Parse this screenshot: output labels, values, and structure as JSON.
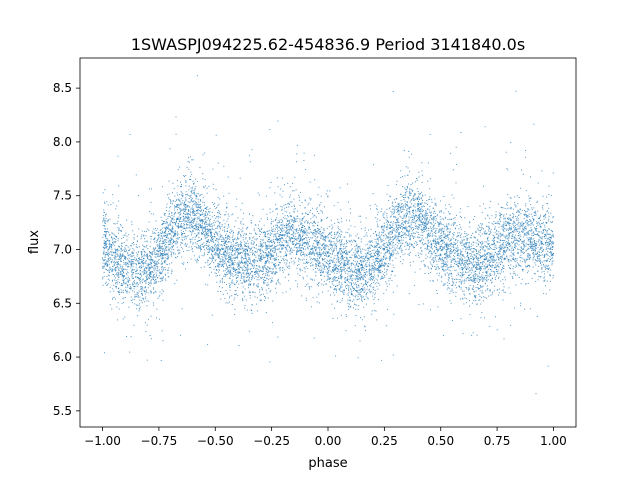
{
  "chart_data": {
    "type": "scatter",
    "title": "1SWASPJ094225.62-454836.9 Period 3141840.0s",
    "xlabel": "phase",
    "ylabel": "flux",
    "xlim": [
      -1.1,
      1.1
    ],
    "ylim": [
      5.35,
      8.78
    ],
    "xticks": [
      -1.0,
      -0.75,
      -0.5,
      -0.25,
      0.0,
      0.25,
      0.5,
      0.75,
      1.0
    ],
    "xtick_labels": [
      "−1.00",
      "−0.75",
      "−0.50",
      "−0.25",
      "0.00",
      "0.25",
      "0.50",
      "0.75",
      "1.00"
    ],
    "yticks": [
      5.5,
      6.0,
      6.5,
      7.0,
      7.5,
      8.0,
      8.5
    ],
    "ytick_labels": [
      "5.5",
      "6.0",
      "6.5",
      "7.0",
      "7.5",
      "8.0",
      "8.5"
    ],
    "grid": false,
    "marker_color": "#1f77b4",
    "series": [
      {
        "phase": [
          -1.0,
          -0.95,
          -0.9,
          -0.85,
          -0.8,
          -0.75,
          -0.7,
          -0.65,
          -0.6,
          -0.55,
          -0.5,
          -0.45,
          -0.4,
          -0.35,
          -0.3,
          -0.25,
          -0.2,
          -0.15,
          -0.1,
          -0.05,
          0.0,
          0.05,
          0.1,
          0.15,
          0.2,
          0.25,
          0.3,
          0.35,
          0.4,
          0.45,
          0.5,
          0.55,
          0.6,
          0.65,
          0.7,
          0.75,
          0.8,
          0.85,
          0.9,
          0.95,
          1.0
        ],
        "flux": [
          7.05,
          6.92,
          6.85,
          6.8,
          6.78,
          6.95,
          7.15,
          7.3,
          7.35,
          7.2,
          7.05,
          6.95,
          6.9,
          6.88,
          6.9,
          7.0,
          7.1,
          7.15,
          7.1,
          7.0,
          6.95,
          6.88,
          6.82,
          6.8,
          6.85,
          7.0,
          7.15,
          7.3,
          7.3,
          7.15,
          7.05,
          6.95,
          6.9,
          6.88,
          6.9,
          7.0,
          7.1,
          7.12,
          7.1,
          7.05,
          7.05
        ]
      }
    ]
  }
}
